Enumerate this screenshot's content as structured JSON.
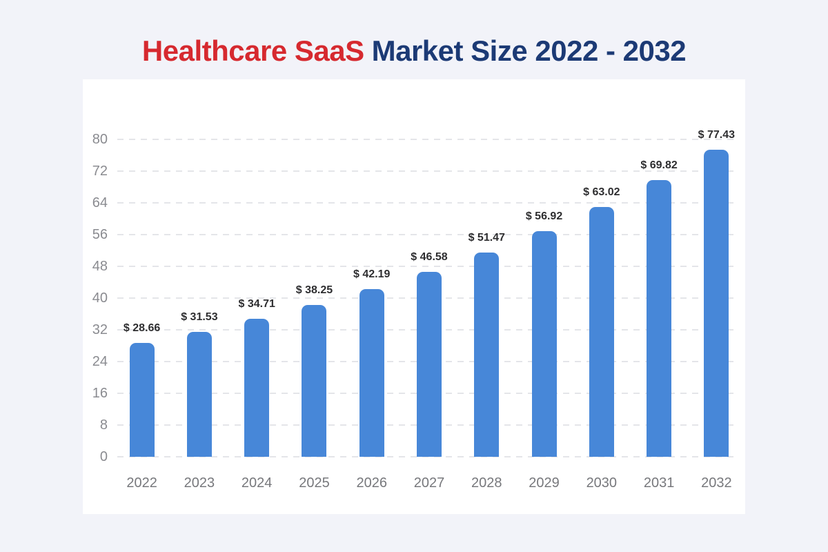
{
  "page": {
    "background_color": "#f2f3f9",
    "card_background_color": "#ffffff"
  },
  "title": {
    "part1": "Healthcare SaaS",
    "part2": "Market Size 2022 - 2032",
    "part1_color": "#d6292f",
    "part2_color": "#1c3a75"
  },
  "chart_data": {
    "type": "bar",
    "title": "Healthcare SaaS Market Size 2022 - 2032",
    "categories": [
      "2022",
      "2023",
      "2024",
      "2025",
      "2026",
      "2027",
      "2028",
      "2029",
      "2030",
      "2031",
      "2032"
    ],
    "values": [
      28.66,
      31.53,
      34.71,
      38.25,
      42.19,
      46.58,
      51.47,
      56.92,
      63.02,
      69.82,
      77.43
    ],
    "value_labels": [
      "$ 28.66",
      "$ 31.53",
      "$ 34.71",
      "$ 38.25",
      "$ 42.19",
      "$ 46.58",
      "$ 51.47",
      "$ 56.92",
      "$ 63.02",
      "$ 69.82",
      "$ 77.43"
    ],
    "currency_prefix": "$",
    "xlabel": "",
    "ylabel": "",
    "ylim": [
      0,
      80
    ],
    "yticks": [
      0,
      8,
      16,
      24,
      32,
      40,
      48,
      56,
      64,
      72,
      80
    ],
    "grid": "horizontal-dashed",
    "legend_position": "none",
    "bar_color": "#4787d8",
    "gridline_color": "#e4e5e9",
    "ytick_label_color": "#8a8b90",
    "xtick_label_color": "#77787c",
    "value_label_color": "#2e2e30"
  }
}
